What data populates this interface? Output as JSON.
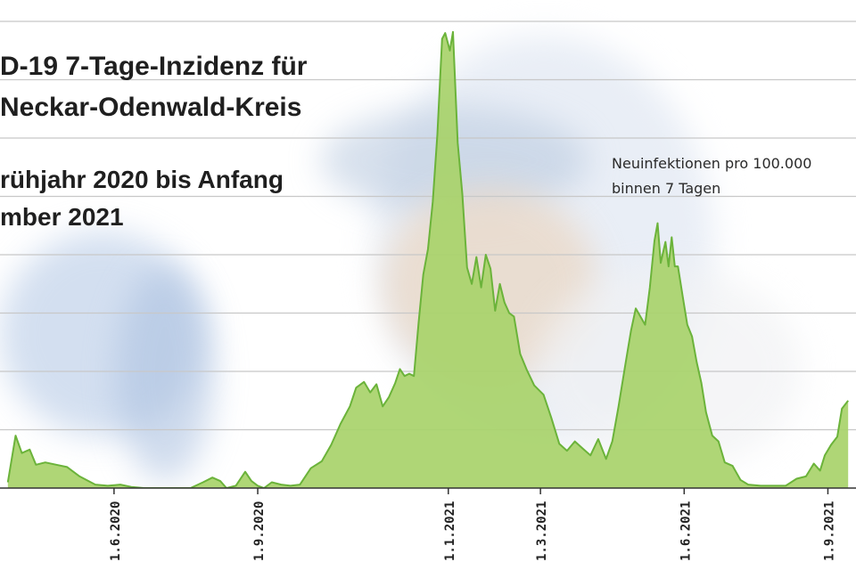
{
  "chart_data": {
    "type": "area",
    "title_lines": [
      "D-19 7-Tage-Inzidenz für",
      "Neckar-Odenwald-Kreis"
    ],
    "subtitle_lines": [
      "rühjahr 2020 bis Anfang",
      "mber 2021"
    ],
    "annotation_lines": [
      "Neuinfektionen pro 100.000",
      "binnen 7 Tagen"
    ],
    "x_ticks": [
      {
        "date": "2020-06-01",
        "label": "1.6.2020"
      },
      {
        "date": "2020-09-01",
        "label": "1.9.2020"
      },
      {
        "date": "2021-01-01",
        "label": "1.1.2021"
      },
      {
        "date": "2021-03-01",
        "label": "1.3.2021"
      },
      {
        "date": "2021-06-01",
        "label": "1.6.2021"
      },
      {
        "date": "2021-09-01",
        "label": "1.9.2021"
      }
    ],
    "grid": true,
    "ylim": [
      0,
      400
    ],
    "gridlines_y": [
      50,
      100,
      150,
      200,
      250,
      300,
      350,
      400
    ],
    "fill_color": "#a8d26a",
    "line_color": "#6bb33a",
    "series": [
      {
        "values": [
          [
            "2020-03-25",
            5
          ],
          [
            "2020-03-30",
            45
          ],
          [
            "2020-04-03",
            30
          ],
          [
            "2020-04-08",
            33
          ],
          [
            "2020-04-12",
            20
          ],
          [
            "2020-04-18",
            22
          ],
          [
            "2020-04-25",
            20
          ],
          [
            "2020-05-02",
            18
          ],
          [
            "2020-05-10",
            10
          ],
          [
            "2020-05-20",
            3
          ],
          [
            "2020-05-28",
            2
          ],
          [
            "2020-06-05",
            3
          ],
          [
            "2020-06-12",
            1
          ],
          [
            "2020-06-20",
            0
          ],
          [
            "2020-07-01",
            0
          ],
          [
            "2020-07-10",
            0
          ],
          [
            "2020-07-20",
            0
          ],
          [
            "2020-07-28",
            5
          ],
          [
            "2020-08-03",
            9
          ],
          [
            "2020-08-08",
            6
          ],
          [
            "2020-08-12",
            0
          ],
          [
            "2020-08-18",
            2
          ],
          [
            "2020-08-24",
            14
          ],
          [
            "2020-08-28",
            6
          ],
          [
            "2020-09-01",
            2
          ],
          [
            "2020-09-05",
            0
          ],
          [
            "2020-09-10",
            5
          ],
          [
            "2020-09-16",
            3
          ],
          [
            "2020-09-22",
            2
          ],
          [
            "2020-09-28",
            3
          ],
          [
            "2020-10-05",
            17
          ],
          [
            "2020-10-12",
            23
          ],
          [
            "2020-10-18",
            37
          ],
          [
            "2020-10-24",
            55
          ],
          [
            "2020-10-30",
            70
          ],
          [
            "2020-11-03",
            86
          ],
          [
            "2020-11-08",
            91
          ],
          [
            "2020-11-12",
            82
          ],
          [
            "2020-11-16",
            89
          ],
          [
            "2020-11-20",
            70
          ],
          [
            "2020-11-24",
            78
          ],
          [
            "2020-11-28",
            90
          ],
          [
            "2020-12-01",
            102
          ],
          [
            "2020-12-04",
            96
          ],
          [
            "2020-12-07",
            98
          ],
          [
            "2020-12-10",
            96
          ],
          [
            "2020-12-13",
            142
          ],
          [
            "2020-12-16",
            183
          ],
          [
            "2020-12-19",
            205
          ],
          [
            "2020-12-22",
            245
          ],
          [
            "2020-12-25",
            303
          ],
          [
            "2020-12-28",
            385
          ],
          [
            "2020-12-30",
            390
          ],
          [
            "2021-01-02",
            375
          ],
          [
            "2021-01-04",
            391
          ],
          [
            "2021-01-07",
            296
          ],
          [
            "2021-01-10",
            252
          ],
          [
            "2021-01-13",
            189
          ],
          [
            "2021-01-16",
            175
          ],
          [
            "2021-01-19",
            198
          ],
          [
            "2021-01-22",
            172
          ],
          [
            "2021-01-25",
            200
          ],
          [
            "2021-01-28",
            188
          ],
          [
            "2021-01-31",
            152
          ],
          [
            "2021-02-03",
            175
          ],
          [
            "2021-02-06",
            159
          ],
          [
            "2021-02-09",
            150
          ],
          [
            "2021-02-12",
            147
          ],
          [
            "2021-02-16",
            115
          ],
          [
            "2021-02-20",
            102
          ],
          [
            "2021-02-25",
            88
          ],
          [
            "2021-03-03",
            80
          ],
          [
            "2021-03-08",
            60
          ],
          [
            "2021-03-13",
            38
          ],
          [
            "2021-03-18",
            32
          ],
          [
            "2021-03-23",
            40
          ],
          [
            "2021-03-28",
            34
          ],
          [
            "2021-04-02",
            28
          ],
          [
            "2021-04-07",
            42
          ],
          [
            "2021-04-12",
            25
          ],
          [
            "2021-04-16",
            40
          ],
          [
            "2021-04-20",
            70
          ],
          [
            "2021-04-24",
            103
          ],
          [
            "2021-04-28",
            135
          ],
          [
            "2021-05-01",
            154
          ],
          [
            "2021-05-04",
            147
          ],
          [
            "2021-05-07",
            140
          ],
          [
            "2021-05-10",
            172
          ],
          [
            "2021-05-13",
            212
          ],
          [
            "2021-05-15",
            227
          ],
          [
            "2021-05-17",
            193
          ],
          [
            "2021-05-20",
            211
          ],
          [
            "2021-05-22",
            190
          ],
          [
            "2021-05-24",
            215
          ],
          [
            "2021-05-26",
            190
          ],
          [
            "2021-05-28",
            190
          ],
          [
            "2021-05-31",
            165
          ],
          [
            "2021-06-03",
            140
          ],
          [
            "2021-06-06",
            130
          ],
          [
            "2021-06-09",
            108
          ],
          [
            "2021-06-12",
            90
          ],
          [
            "2021-06-15",
            65
          ],
          [
            "2021-06-19",
            45
          ],
          [
            "2021-06-23",
            40
          ],
          [
            "2021-06-27",
            22
          ],
          [
            "2021-07-02",
            19
          ],
          [
            "2021-07-07",
            7
          ],
          [
            "2021-07-12",
            3
          ],
          [
            "2021-07-20",
            2
          ],
          [
            "2021-07-28",
            2
          ],
          [
            "2021-08-05",
            2
          ],
          [
            "2021-08-12",
            8
          ],
          [
            "2021-08-18",
            10
          ],
          [
            "2021-08-23",
            21
          ],
          [
            "2021-08-27",
            15
          ],
          [
            "2021-08-30",
            28
          ],
          [
            "2021-09-03",
            37
          ],
          [
            "2021-09-07",
            44
          ],
          [
            "2021-09-10",
            68
          ],
          [
            "2021-09-14",
            75
          ]
        ]
      }
    ]
  }
}
